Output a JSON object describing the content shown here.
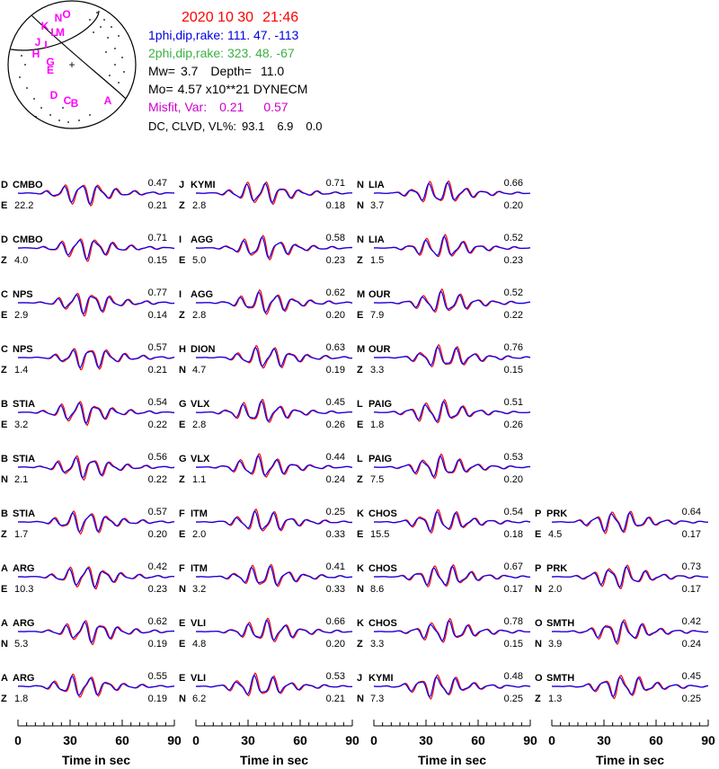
{
  "header": {
    "date": "2020 10 30",
    "time": "21:46",
    "plane1": "1phi,dip,rake: 111. 47. -113",
    "plane2": "2phi,dip,rake: 323. 48.  -67",
    "mw_label": "Mw=",
    "mw": "3.7",
    "depth_label": "Depth=",
    "depth": "11.0",
    "mo_label": "Mo=",
    "mo": "4.57 x10**21 DYNECM",
    "misfit_label": "Misfit, Var:",
    "misfit": "0.21",
    "var": "0.57",
    "dc_label": "DC, CLVD, VL%:",
    "dc": "93.1",
    "clvd": "6.9",
    "vl": "0.0"
  },
  "colors": {
    "date": "#ff0000",
    "plane1": "#0000dd",
    "plane2": "#3cb043",
    "misfit": "#cc00cc",
    "observed": "#ff0000",
    "synthetic": "#0000ff",
    "station_letters": "#ff00ff"
  },
  "beachball": {
    "station_letters": [
      "N",
      "O",
      "K",
      "M",
      "L",
      "J",
      "I",
      "H",
      "G",
      "E",
      "D",
      "C",
      "B",
      "A"
    ],
    "center_mark": "+"
  },
  "chart_data": {
    "type": "line",
    "description_series": [
      "observed",
      "synthetic"
    ],
    "xlabel": "Time  in sec",
    "xlim": [
      0,
      90
    ],
    "xticks": [
      "0",
      "30",
      "60",
      "90"
    ],
    "columns": [
      [
        {
          "letter": "D",
          "station": "CMBO",
          "comp": "E",
          "value": "22.2",
          "corr_top": "0.47",
          "corr_bot": "0.21"
        },
        {
          "letter": "D",
          "station": "CMBO",
          "comp": "Z",
          "value": "4.0",
          "corr_top": "0.71",
          "corr_bot": "0.15"
        },
        {
          "letter": "C",
          "station": "NPS",
          "comp": "E",
          "value": "2.9",
          "corr_top": "0.77",
          "corr_bot": "0.14"
        },
        {
          "letter": "C",
          "station": "NPS",
          "comp": "Z",
          "value": "1.4",
          "corr_top": "0.57",
          "corr_bot": "0.21"
        },
        {
          "letter": "B",
          "station": "STIA",
          "comp": "E",
          "value": "3.2",
          "corr_top": "0.54",
          "corr_bot": "0.22"
        },
        {
          "letter": "B",
          "station": "STIA",
          "comp": "N",
          "value": "2.1",
          "corr_top": "0.56",
          "corr_bot": "0.22"
        },
        {
          "letter": "B",
          "station": "STIA",
          "comp": "Z",
          "value": "1.7",
          "corr_top": "0.57",
          "corr_bot": "0.20"
        },
        {
          "letter": "A",
          "station": "ARG",
          "comp": "E",
          "value": "10.3",
          "corr_top": "0.42",
          "corr_bot": "0.23"
        },
        {
          "letter": "A",
          "station": "ARG",
          "comp": "N",
          "value": "5.3",
          "corr_top": "0.62",
          "corr_bot": "0.19"
        },
        {
          "letter": "A",
          "station": "ARG",
          "comp": "Z",
          "value": "1.8",
          "corr_top": "0.55",
          "corr_bot": "0.19"
        }
      ],
      [
        {
          "letter": "J",
          "station": "KYMI",
          "comp": "Z",
          "value": "2.8",
          "corr_top": "0.71",
          "corr_bot": "0.18"
        },
        {
          "letter": "I",
          "station": "AGG",
          "comp": "E",
          "value": "5.0",
          "corr_top": "0.58",
          "corr_bot": "0.23"
        },
        {
          "letter": "I",
          "station": "AGG",
          "comp": "Z",
          "value": "2.8",
          "corr_top": "0.62",
          "corr_bot": "0.20"
        },
        {
          "letter": "H",
          "station": "DION",
          "comp": "N",
          "value": "4.7",
          "corr_top": "0.63",
          "corr_bot": "0.19"
        },
        {
          "letter": "G",
          "station": "VLX",
          "comp": "E",
          "value": "2.8",
          "corr_top": "0.45",
          "corr_bot": "0.26"
        },
        {
          "letter": "G",
          "station": "VLX",
          "comp": "Z",
          "value": "1.1",
          "corr_top": "0.44",
          "corr_bot": "0.24"
        },
        {
          "letter": "F",
          "station": "ITM",
          "comp": "E",
          "value": "2.0",
          "corr_top": "0.25",
          "corr_bot": "0.33"
        },
        {
          "letter": "F",
          "station": "ITM",
          "comp": "N",
          "value": "3.2",
          "corr_top": "0.41",
          "corr_bot": "0.33"
        },
        {
          "letter": "E",
          "station": "VLI",
          "comp": "E",
          "value": "4.8",
          "corr_top": "0.66",
          "corr_bot": "0.20"
        },
        {
          "letter": "E",
          "station": "VLI",
          "comp": "N",
          "value": "6.2",
          "corr_top": "0.53",
          "corr_bot": "0.21"
        }
      ],
      [
        {
          "letter": "N",
          "station": "LIA",
          "comp": "N",
          "value": "3.7",
          "corr_top": "0.66",
          "corr_bot": "0.20"
        },
        {
          "letter": "N",
          "station": "LIA",
          "comp": "Z",
          "value": "1.5",
          "corr_top": "0.52",
          "corr_bot": "0.23"
        },
        {
          "letter": "M",
          "station": "OUR",
          "comp": "E",
          "value": "7.9",
          "corr_top": "0.52",
          "corr_bot": "0.22"
        },
        {
          "letter": "M",
          "station": "OUR",
          "comp": "Z",
          "value": "3.3",
          "corr_top": "0.76",
          "corr_bot": "0.15"
        },
        {
          "letter": "L",
          "station": "PAIG",
          "comp": "E",
          "value": "1.8",
          "corr_top": "0.51",
          "corr_bot": "0.26"
        },
        {
          "letter": "L",
          "station": "PAIG",
          "comp": "Z",
          "value": "7.5",
          "corr_top": "0.53",
          "corr_bot": "0.20"
        },
        {
          "letter": "K",
          "station": "CHOS",
          "comp": "E",
          "value": "15.5",
          "corr_top": "0.54",
          "corr_bot": "0.18"
        },
        {
          "letter": "K",
          "station": "CHOS",
          "comp": "N",
          "value": "8.6",
          "corr_top": "0.67",
          "corr_bot": "0.17"
        },
        {
          "letter": "K",
          "station": "CHOS",
          "comp": "Z",
          "value": "3.3",
          "corr_top": "0.78",
          "corr_bot": "0.15"
        },
        {
          "letter": "J",
          "station": "KYMI",
          "comp": "N",
          "value": "7.3",
          "corr_top": "0.48",
          "corr_bot": "0.25"
        }
      ],
      [
        {
          "letter": "P",
          "station": "PRK",
          "comp": "E",
          "value": "4.5",
          "corr_top": "0.64",
          "corr_bot": "0.17"
        },
        {
          "letter": "P",
          "station": "PRK",
          "comp": "N",
          "value": "2.0",
          "corr_top": "0.73",
          "corr_bot": "0.17"
        },
        {
          "letter": "O",
          "station": "SMTH",
          "comp": "N",
          "value": "3.9",
          "corr_top": "0.42",
          "corr_bot": "0.24"
        },
        {
          "letter": "O",
          "station": "SMTH",
          "comp": "Z",
          "value": "1.3",
          "corr_top": "0.45",
          "corr_bot": "0.25"
        }
      ]
    ]
  }
}
